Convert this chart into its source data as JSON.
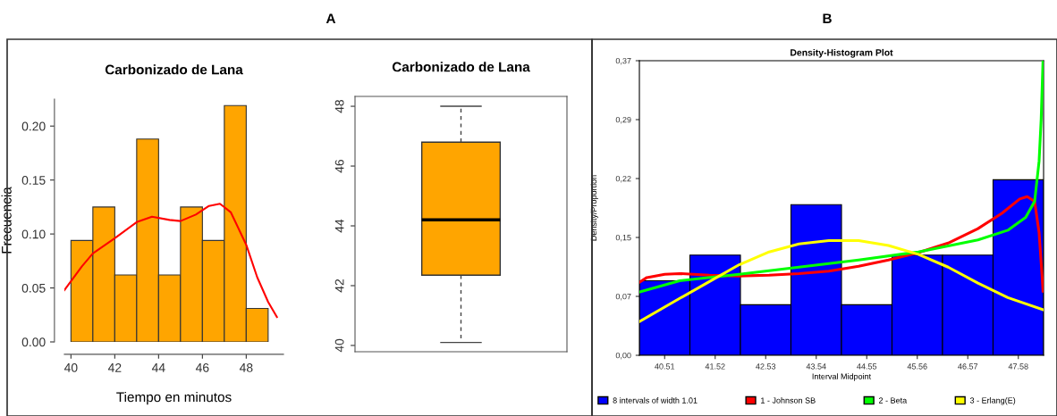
{
  "chart_data": [
    {
      "type": "histogram",
      "title": "Carbonizado de Lana",
      "xlabel": "Tiempo en minutos",
      "ylabel": "Frecuencia",
      "annotations": [
        "A"
      ],
      "series": [
        {
          "type": "histogram",
          "color": "#ffa500",
          "bins": [
            40,
            41,
            42,
            43,
            44,
            45,
            46,
            47,
            48,
            49
          ],
          "values": [
            0.094,
            0.125,
            0.062,
            0.188,
            0.062,
            0.125,
            0.094,
            0.219,
            0.031
          ]
        },
        {
          "type": "line",
          "color": "#ff0000",
          "x": [
            39.7,
            40.5,
            41,
            42,
            43,
            43.7,
            44.5,
            45,
            45.7,
            46.3,
            46.8,
            47.3,
            48,
            48.5,
            49,
            49.4
          ],
          "values": [
            0.048,
            0.07,
            0.082,
            0.096,
            0.111,
            0.116,
            0.113,
            0.112,
            0.118,
            0.126,
            0.128,
            0.12,
            0.09,
            0.06,
            0.037,
            0.023
          ]
        }
      ],
      "xlim": [
        39.7,
        49.7
      ],
      "ylim": [
        0,
        0.225
      ],
      "xticks": [
        40,
        42,
        44,
        46,
        48
      ],
      "yticks": [
        {
          "value": 0,
          "label": "0.00"
        },
        {
          "value": 0.05,
          "label": "0.05"
        },
        {
          "value": 0.1,
          "label": "0.10"
        },
        {
          "value": 0.15,
          "label": "0.15"
        },
        {
          "value": 0.2,
          "label": "0.20"
        }
      ]
    },
    {
      "type": "box",
      "title": "Carbonizado de Lana",
      "categories": [
        null
      ],
      "color": "#ffa500",
      "boxes": [
        {
          "low": 40.1,
          "q1": 42.35,
          "median": 44.2,
          "q3": 46.8,
          "high": 48.0
        }
      ],
      "ylim": [
        39.79,
        48.33
      ],
      "yticks": [
        40,
        42,
        44,
        46,
        48
      ]
    },
    {
      "type": "histogram",
      "title": "Density-Histogram Plot",
      "xlabel": "Interval Midpoint",
      "ylabel": "Density/Proportion",
      "annotations": [
        "B"
      ],
      "legend": "bottom",
      "series": [
        {
          "type": "histogram",
          "name": "8 intervals of width 1.01",
          "color": "#0000ff",
          "bins": [
            40.005,
            41.015,
            42.025,
            43.035,
            44.045,
            45.055,
            46.065,
            47.075,
            48.085
          ],
          "values": [
            0.093,
            0.125,
            0.063,
            0.188,
            0.063,
            0.125,
            0.125,
            0.219
          ]
        },
        {
          "type": "line",
          "name": "1 - Johnson SB",
          "color": "#ff0000",
          "x": [
            40.005,
            40.154,
            40.512,
            40.81,
            41.406,
            42.0,
            42.599,
            43.195,
            43.792,
            44.388,
            44.984,
            45.58,
            46.177,
            46.773,
            47.25,
            47.608,
            47.757,
            47.906,
            47.995,
            48.055,
            48.073
          ],
          "values": [
            0.091,
            0.097,
            0.101,
            0.102,
            0.1,
            0.099,
            0.1,
            0.102,
            0.105,
            0.111,
            0.119,
            0.128,
            0.14,
            0.158,
            0.177,
            0.195,
            0.198,
            0.192,
            0.153,
            0.099,
            0.08
          ]
        },
        {
          "type": "line",
          "name": "2 - Beta",
          "color": "#00ff00",
          "x": [
            40.005,
            40.81,
            42.0,
            43.195,
            44.388,
            45.58,
            46.773,
            47.37,
            47.727,
            47.906,
            47.995,
            48.037,
            48.073
          ],
          "values": [
            0.079,
            0.093,
            0.101,
            0.11,
            0.119,
            0.129,
            0.144,
            0.156,
            0.172,
            0.192,
            0.242,
            0.295,
            0.367
          ]
        },
        {
          "type": "line",
          "name": "3 - Erlang(E)",
          "color": "#ffff00",
          "x": [
            40.005,
            40.81,
            41.406,
            42.0,
            42.599,
            43.195,
            43.792,
            44.388,
            44.984,
            45.58,
            46.177,
            46.773,
            47.37,
            48.073
          ],
          "values": [
            0.042,
            0.071,
            0.092,
            0.113,
            0.129,
            0.139,
            0.143,
            0.143,
            0.137,
            0.126,
            0.11,
            0.09,
            0.072,
            0.057
          ]
        }
      ],
      "xlim": [
        40.005,
        48.085
      ],
      "ylim": [
        0,
        0.3675
      ],
      "xticks": [
        40.51,
        41.52,
        42.53,
        43.54,
        44.55,
        45.56,
        46.57,
        47.58
      ],
      "yticks": [
        {
          "value": 0,
          "label": "0,00"
        },
        {
          "value": 0.0735,
          "label": "0,07"
        },
        {
          "value": 0.147,
          "label": "0,15"
        },
        {
          "value": 0.2205,
          "label": "0,22"
        },
        {
          "value": 0.294,
          "label": "0,29"
        },
        {
          "value": 0.3675,
          "label": "0,37"
        }
      ]
    }
  ]
}
